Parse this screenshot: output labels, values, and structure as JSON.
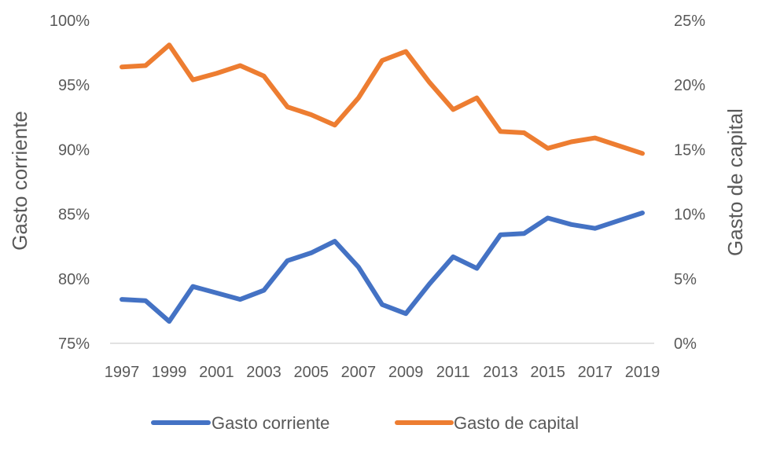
{
  "chart_data": {
    "type": "line",
    "x": [
      "1997",
      "1998",
      "1999",
      "2000",
      "2001",
      "2002",
      "2003",
      "2004",
      "2005",
      "2006",
      "2007",
      "2008",
      "2009",
      "2010",
      "2011",
      "2012",
      "2013",
      "2014",
      "2015",
      "2016",
      "2017",
      "2018",
      "2019"
    ],
    "x_tick_labels": [
      "1997",
      "1999",
      "2001",
      "2003",
      "2005",
      "2007",
      "2009",
      "2011",
      "2013",
      "2015",
      "2017",
      "2019"
    ],
    "y_left": {
      "label": "Gasto corriente",
      "ylim": [
        75,
        100
      ],
      "ticks": [
        "75%",
        "80%",
        "85%",
        "90%",
        "95%",
        "100%"
      ]
    },
    "y_right": {
      "label": "Gasto de capital",
      "ylim": [
        0,
        25
      ],
      "ticks": [
        "0%",
        "5%",
        "10%",
        "15%",
        "20%",
        "25%"
      ]
    },
    "series": [
      {
        "name": "Gasto corriente",
        "axis": "left",
        "color": "#4472C4",
        "values": [
          78.4,
          78.3,
          76.7,
          79.4,
          78.9,
          78.4,
          79.1,
          81.4,
          82.0,
          82.9,
          80.9,
          78.0,
          77.3,
          79.6,
          81.7,
          80.8,
          83.4,
          83.5,
          84.7,
          84.2,
          83.9,
          84.5,
          85.1
        ]
      },
      {
        "name": "Gasto de capital",
        "axis": "right",
        "color": "#ED7D31",
        "values": [
          21.4,
          21.5,
          23.1,
          20.4,
          20.9,
          21.5,
          20.7,
          18.3,
          17.7,
          16.9,
          19.0,
          21.9,
          22.6,
          20.2,
          18.1,
          19.0,
          16.4,
          16.3,
          15.1,
          15.6,
          15.9,
          15.3,
          14.7
        ]
      }
    ],
    "grid": false,
    "legend": "bottom"
  }
}
